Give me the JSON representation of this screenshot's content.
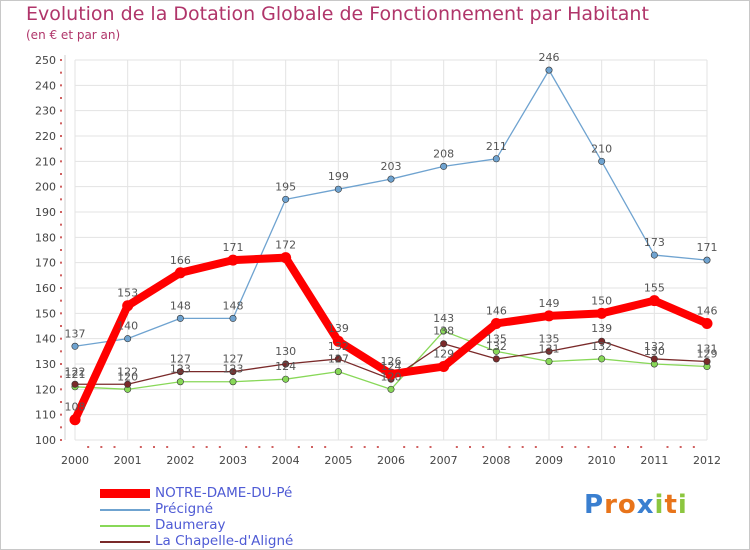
{
  "chart_data": {
    "type": "line",
    "title": "Evolution de la Dotation Globale de Fonctionnement par Habitant",
    "subtitle": "(en € et par an)",
    "xlabel": "",
    "ylabel": "",
    "x": [
      "2000",
      "2001",
      "2002",
      "2003",
      "2004",
      "2005",
      "2006",
      "2007",
      "2008",
      "2009",
      "2010",
      "2011",
      "2012"
    ],
    "ylim": [
      100,
      250
    ],
    "yticks": [
      100,
      110,
      120,
      130,
      140,
      150,
      160,
      170,
      180,
      190,
      200,
      210,
      220,
      230,
      240,
      250
    ],
    "grid": true,
    "legend_position": "bottom-left",
    "series": [
      {
        "name": "NOTRE-DAME-DU-Pé",
        "color": "#ff0000",
        "values": [
          108,
          153,
          166,
          171,
          172,
          139,
          126,
          129,
          146,
          149,
          150,
          155,
          146
        ]
      },
      {
        "name": "Précigné",
        "color": "#6fa3d0",
        "values": [
          137,
          140,
          148,
          148,
          195,
          199,
          203,
          208,
          211,
          246,
          210,
          173,
          171
        ]
      },
      {
        "name": "Daumeray",
        "color": "#88d858",
        "values": [
          121,
          120,
          123,
          123,
          124,
          127,
          120,
          143,
          135,
          131,
          132,
          130,
          129
        ]
      },
      {
        "name": "La Chapelle-d'Aligné",
        "color": "#7a2a2a",
        "values": [
          122,
          122,
          127,
          127,
          130,
          132,
          124,
          138,
          132,
          135,
          139,
          132,
          131
        ]
      }
    ]
  },
  "logo": {
    "text": "Proxiti"
  }
}
